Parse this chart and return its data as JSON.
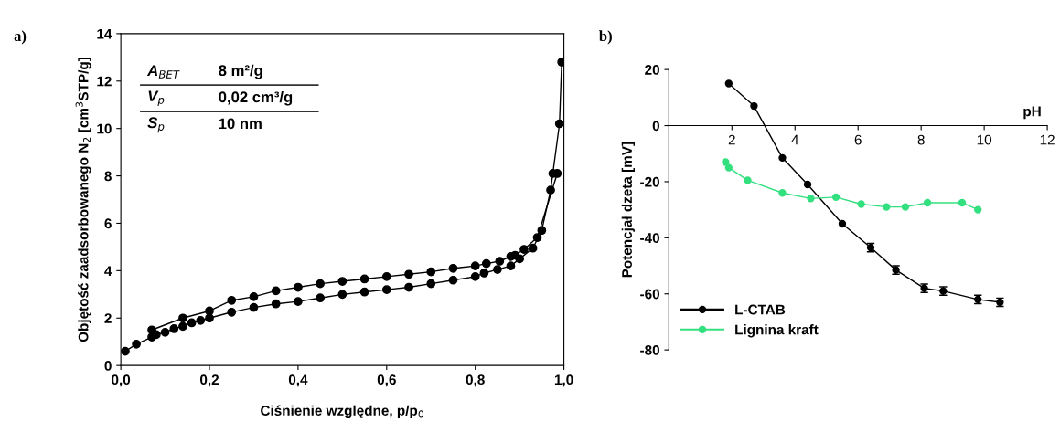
{
  "chart_data": [
    {
      "type": "line",
      "xlabel": "Ciśnienie względne, p/p$_{0}$",
      "ylabel": "Objętość zaadsorbowanego N$_{2}$ [cm$^{3}$STP/g]",
      "annotations": [
        "a)",
        "A$_{BET}$",
        "8 m²/g",
        "V$_{p}$",
        "0,02 cm³/g",
        "S$_{p}$",
        "10 nm"
      ],
      "xlim": [
        0,
        1
      ],
      "ylim": [
        0,
        14
      ],
      "xticks": [
        {
          "value": 0,
          "label": "0,0"
        },
        {
          "value": 0.2,
          "label": "0,2"
        },
        {
          "value": 0.4,
          "label": "0,4"
        },
        {
          "value": 0.6,
          "label": "0,6"
        },
        {
          "value": 0.8,
          "label": "0,8"
        },
        {
          "value": 1,
          "label": "1,0"
        }
      ],
      "yticks": [
        0,
        2,
        4,
        6,
        8,
        10,
        12,
        14
      ],
      "marker": "circle",
      "line_style": "solid",
      "grid": false,
      "legend": false,
      "series": [
        {
          "color": "#000000",
          "x": [
            0.01,
            0.035,
            0.07,
            0.08,
            0.1,
            0.12,
            0.14,
            0.16,
            0.18,
            0.2,
            0.25,
            0.3,
            0.35,
            0.4,
            0.45,
            0.5,
            0.55,
            0.6,
            0.65,
            0.7,
            0.75,
            0.8,
            0.82,
            0.85,
            0.88,
            0.9,
            0.93,
            0.95,
            0.97,
            0.975,
            0.99,
            0.995
          ],
          "values": [
            0.6,
            0.9,
            1.2,
            1.3,
            1.4,
            1.55,
            1.65,
            1.8,
            1.9,
            2.0,
            2.25,
            2.45,
            2.6,
            2.7,
            2.85,
            3.0,
            3.1,
            3.2,
            3.3,
            3.45,
            3.6,
            3.75,
            3.9,
            4.05,
            4.2,
            4.5,
            4.95,
            5.7,
            7.4,
            8.1,
            10.2,
            12.8
          ]
        },
        {
          "color": "#000000",
          "x": [
            0.985,
            0.94,
            0.91,
            0.89,
            0.88,
            0.855,
            0.825,
            0.8,
            0.75,
            0.7,
            0.65,
            0.6,
            0.55,
            0.5,
            0.45,
            0.4,
            0.35,
            0.3,
            0.25,
            0.2,
            0.14,
            0.07
          ],
          "values": [
            8.1,
            5.4,
            4.9,
            4.65,
            4.6,
            4.4,
            4.3,
            4.2,
            4.1,
            3.95,
            3.85,
            3.75,
            3.65,
            3.55,
            3.45,
            3.3,
            3.15,
            2.9,
            2.75,
            2.3,
            2.0,
            1.5
          ]
        }
      ]
    },
    {
      "type": "line",
      "xlabel": "pH",
      "ylabel": "Potencjał dzeta [mV]",
      "annotations": [
        "b)"
      ],
      "xlim": [
        0,
        12
      ],
      "ylim": [
        -80,
        20
      ],
      "xticks": [
        2,
        4,
        6,
        8,
        10,
        12
      ],
      "yticks": [
        -80,
        -60,
        -40,
        -20,
        0,
        20
      ],
      "marker": "circle",
      "line_style": "solid",
      "grid": false,
      "legend": "bottom left",
      "series": [
        {
          "name": "L-CTAB",
          "color": "#000000",
          "x": [
            1.9,
            2.7,
            3.6,
            4.4,
            5.5,
            6.4,
            7.2,
            8.1,
            8.7,
            9.8,
            10.5
          ],
          "values": [
            15,
            7,
            -11.5,
            -21,
            -35,
            -43.5,
            -51.5,
            -58,
            -59,
            -62,
            -63
          ],
          "errors": [
            null,
            null,
            null,
            null,
            null,
            1.5,
            1.5,
            1.5,
            1.5,
            1.5,
            1.5
          ]
        },
        {
          "name": "Lignina kraft",
          "color": "#33e07f",
          "x": [
            1.8,
            1.9,
            2.5,
            3.6,
            4.5,
            5.3,
            6.1,
            6.9,
            7.5,
            8.2,
            9.3,
            9.8
          ],
          "values": [
            -13,
            -15,
            -19.5,
            -24,
            -26,
            -25.5,
            -28,
            -29,
            -29,
            -27.5,
            -27.5,
            -30
          ]
        }
      ]
    }
  ]
}
